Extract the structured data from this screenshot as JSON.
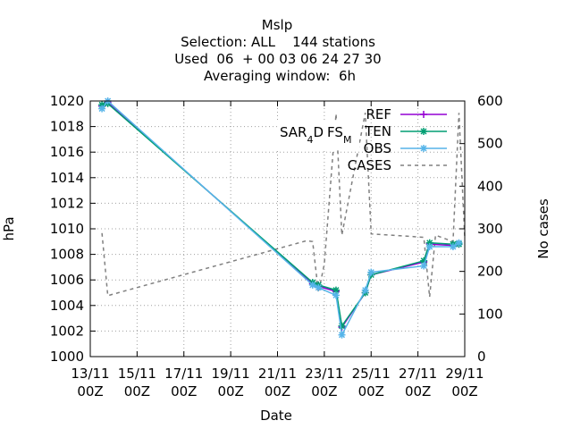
{
  "chart_data": {
    "type": "line",
    "title_lines": [
      "Mslp",
      "Selection: ALL    144 stations",
      "Used  06  + 00 03 06 24 27 30",
      "Averaging window:  6h"
    ],
    "xlabel": "Date",
    "ylabel": "hPa",
    "y2label": "No cases",
    "xlim": [
      "2018-11-13T00:00",
      "2018-11-29T00:00"
    ],
    "ylim": [
      1000,
      1020
    ],
    "y2lim": [
      0,
      600
    ],
    "grid": true,
    "legend_position": "top-right",
    "annotation": {
      "main": "SAR",
      "sub1": "4",
      "mid": "D",
      "sub2": "FS",
      "sub3": "M"
    },
    "x_ticks": [
      {
        "x": "2018-11-13T00:00",
        "line1": "13/11",
        "line2": "00Z"
      },
      {
        "x": "2018-11-15T00:00",
        "line1": "15/11",
        "line2": "00Z"
      },
      {
        "x": "2018-11-17T00:00",
        "line1": "17/11",
        "line2": "00Z"
      },
      {
        "x": "2018-11-19T00:00",
        "line1": "19/11",
        "line2": "00Z"
      },
      {
        "x": "2018-11-21T00:00",
        "line1": "21/11",
        "line2": "00Z"
      },
      {
        "x": "2018-11-23T00:00",
        "line1": "23/11",
        "line2": "00Z"
      },
      {
        "x": "2018-11-25T00:00",
        "line1": "25/11",
        "line2": "00Z"
      },
      {
        "x": "2018-11-27T00:00",
        "line1": "27/11",
        "line2": "00Z"
      },
      {
        "x": "2018-11-29T00:00",
        "line1": "29/11",
        "line2": "00Z"
      }
    ],
    "y_ticks": [
      1000,
      1002,
      1004,
      1006,
      1008,
      1010,
      1012,
      1014,
      1016,
      1018,
      1020
    ],
    "y2_ticks": [
      0,
      100,
      200,
      300,
      400,
      500,
      600
    ],
    "series": [
      {
        "name": "REF",
        "color": "#9400d3",
        "marker": "plus",
        "axis": "y",
        "points": [
          [
            "2018-11-13T12:00",
            1019.6
          ],
          [
            "2018-11-13T18:00",
            1019.9
          ],
          [
            "2018-11-22T12:00",
            1005.7
          ],
          [
            "2018-11-22T18:00",
            1005.5
          ],
          [
            "2018-11-23T12:00",
            1005.1
          ],
          [
            "2018-11-23T18:00",
            1002.3
          ],
          [
            "2018-11-24T18:00",
            1005.0
          ],
          [
            "2018-11-25T00:00",
            1006.4
          ],
          [
            "2018-11-27T06:00",
            1007.4
          ],
          [
            "2018-11-27T12:00",
            1008.8
          ],
          [
            "2018-11-28T12:00",
            1008.7
          ],
          [
            "2018-11-28T18:00",
            1008.8
          ]
        ]
      },
      {
        "name": "TEN",
        "color": "#009e73",
        "marker": "star",
        "axis": "y",
        "points": [
          [
            "2018-11-13T12:00",
            1019.7
          ],
          [
            "2018-11-13T18:00",
            1019.8
          ],
          [
            "2018-11-22T12:00",
            1005.8
          ],
          [
            "2018-11-22T18:00",
            1005.6
          ],
          [
            "2018-11-23T12:00",
            1005.2
          ],
          [
            "2018-11-23T18:00",
            1002.4
          ],
          [
            "2018-11-24T18:00",
            1005.0
          ],
          [
            "2018-11-25T00:00",
            1006.4
          ],
          [
            "2018-11-27T06:00",
            1007.5
          ],
          [
            "2018-11-27T12:00",
            1008.9
          ],
          [
            "2018-11-28T12:00",
            1008.8
          ],
          [
            "2018-11-28T18:00",
            1008.8
          ]
        ]
      },
      {
        "name": "OBS",
        "color": "#56b4e9",
        "marker": "star",
        "axis": "y",
        "points": [
          [
            "2018-11-13T12:00",
            1019.4
          ],
          [
            "2018-11-13T18:00",
            1020.0
          ],
          [
            "2018-11-22T12:00",
            1005.6
          ],
          [
            "2018-11-22T18:00",
            1005.4
          ],
          [
            "2018-11-23T12:00",
            1004.8
          ],
          [
            "2018-11-23T18:00",
            1001.7
          ],
          [
            "2018-11-24T18:00",
            1005.2
          ],
          [
            "2018-11-25T00:00",
            1006.6
          ],
          [
            "2018-11-27T06:00",
            1007.1
          ],
          [
            "2018-11-27T12:00",
            1008.6
          ],
          [
            "2018-11-28T12:00",
            1008.6
          ],
          [
            "2018-11-28T18:00",
            1008.9
          ]
        ]
      },
      {
        "name": "CASES",
        "color": "#808080",
        "marker": "none",
        "dash": true,
        "axis": "y2",
        "points": [
          [
            "2018-11-13T12:00",
            290
          ],
          [
            "2018-11-13T18:00",
            143
          ],
          [
            "2018-11-22T06:00",
            272
          ],
          [
            "2018-11-22T12:00",
            270
          ],
          [
            "2018-11-22T18:00",
            150
          ],
          [
            "2018-11-23T00:00",
            218
          ],
          [
            "2018-11-23T12:00",
            570
          ],
          [
            "2018-11-23T18:00",
            285
          ],
          [
            "2018-11-24T18:00",
            572
          ],
          [
            "2018-11-25T00:00",
            288
          ],
          [
            "2018-11-27T06:00",
            280
          ],
          [
            "2018-11-27T12:00",
            140
          ],
          [
            "2018-11-27T18:00",
            285
          ],
          [
            "2018-11-28T12:00",
            270
          ],
          [
            "2018-11-28T18:00",
            572
          ],
          [
            "2018-11-29T00:00",
            280
          ]
        ]
      }
    ]
  }
}
